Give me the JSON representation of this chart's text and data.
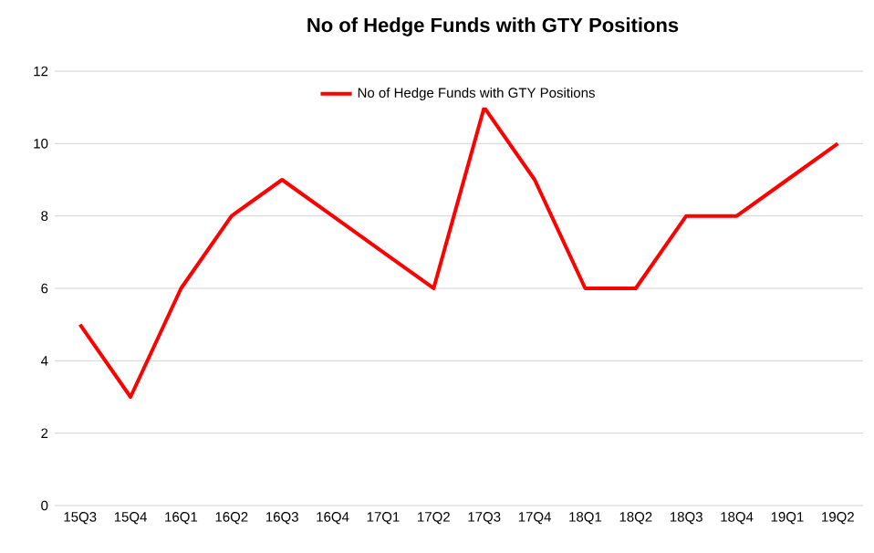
{
  "chart_data": {
    "type": "line",
    "title": "No of Hedge Funds with GTY Positions",
    "categories": [
      "15Q3",
      "15Q4",
      "16Q1",
      "16Q2",
      "16Q3",
      "16Q4",
      "17Q1",
      "17Q2",
      "17Q3",
      "17Q4",
      "18Q1",
      "18Q2",
      "18Q3",
      "18Q4",
      "19Q1",
      "19Q2"
    ],
    "series": [
      {
        "name": "No of Hedge Funds with GTY Positions",
        "color": "#ff0000",
        "values": [
          5,
          3,
          6,
          8,
          9,
          8,
          7,
          6,
          11,
          9,
          6,
          6,
          8,
          8,
          9,
          10
        ]
      }
    ],
    "ylim": [
      0,
      12
    ],
    "yticks": [
      0,
      2,
      4,
      6,
      8,
      10,
      12
    ],
    "grid": "y",
    "legend": "top"
  }
}
